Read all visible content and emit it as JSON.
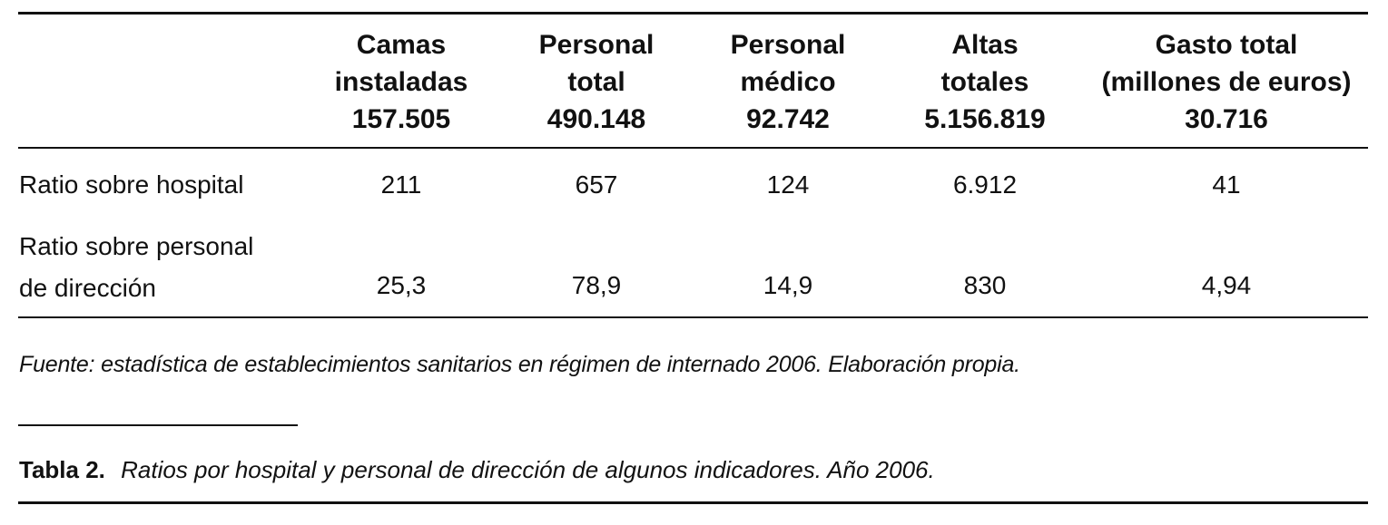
{
  "table": {
    "columns": [
      {
        "line1": "Camas",
        "line2": "instaladas",
        "total": "157.505"
      },
      {
        "line1": "Personal",
        "line2": "total",
        "total": "490.148"
      },
      {
        "line1": "Personal",
        "line2": "médico",
        "total": "92.742"
      },
      {
        "line1": "Altas",
        "line2": "totales",
        "total": "5.156.819"
      },
      {
        "line1": "Gasto total",
        "line2": "(millones de euros)",
        "total": "30.716"
      }
    ],
    "rows": [
      {
        "label_line1": "Ratio sobre hospital",
        "label_line2": "",
        "values": [
          "211",
          "657",
          "124",
          "6.912",
          "41"
        ]
      },
      {
        "label_line1": "Ratio sobre personal",
        "label_line2": "de dirección",
        "values": [
          "25,3",
          "78,9",
          "14,9",
          "830",
          "4,94"
        ]
      }
    ]
  },
  "source": "Fuente: estadística de establecimientos sanitarios en régimen de internado 2006. Elaboración propia.",
  "caption": {
    "label": "Tabla 2.",
    "text": "Ratios por hospital y personal de dirección de algunos indicadores. Año 2006."
  }
}
